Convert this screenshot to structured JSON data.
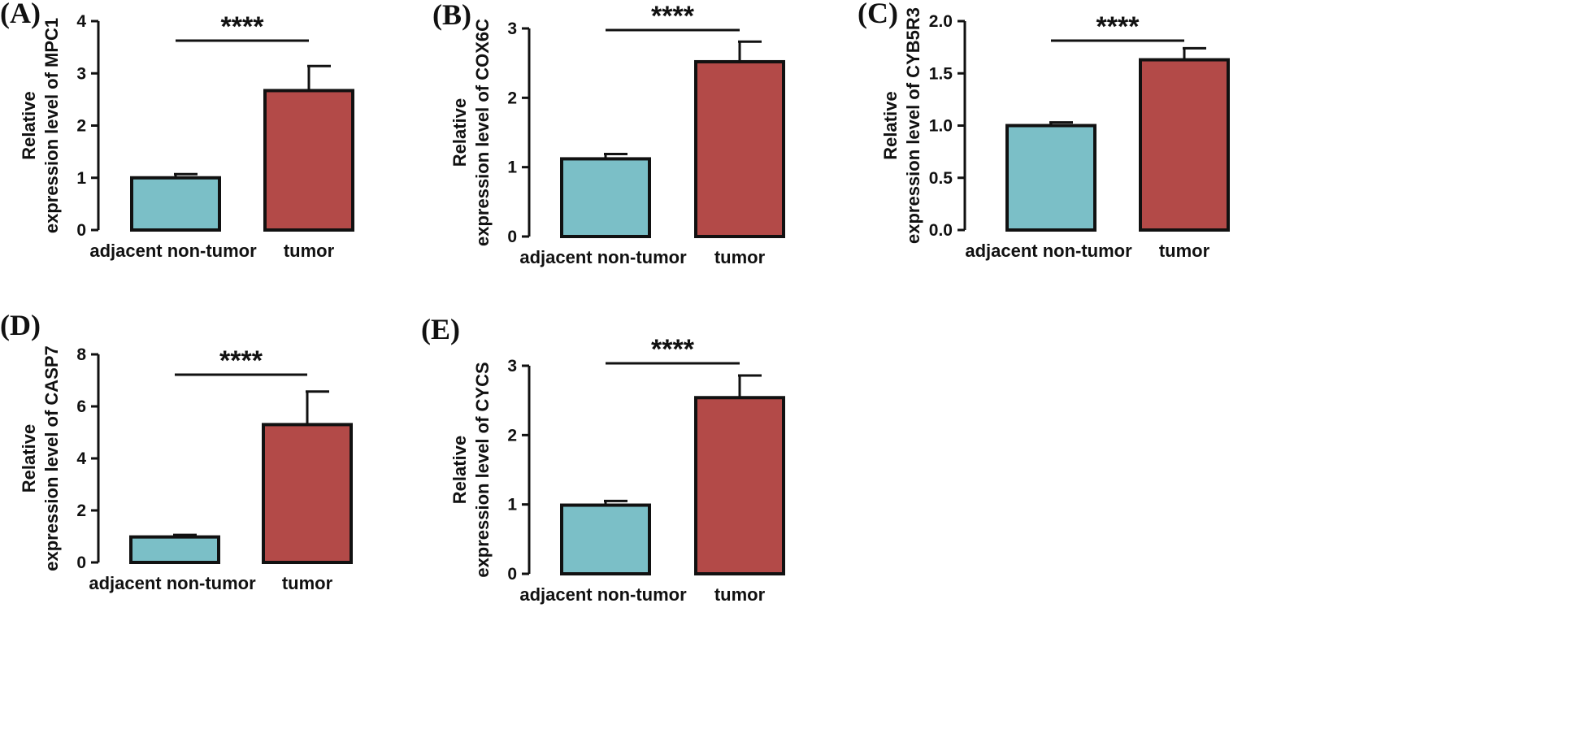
{
  "figure": {
    "background": "#ffffff",
    "colors": {
      "non_tumor": "#7bbfc7",
      "tumor": "#b34a48",
      "outline": "#111111"
    }
  },
  "chart_data": [
    {
      "type": "bar",
      "panel": "(A)",
      "categories": [
        "adjacent non-tumor",
        "tumor"
      ],
      "values": [
        1.0,
        2.67
      ],
      "errors": [
        0.07,
        0.47
      ],
      "ylabel_line1": "Relative",
      "ylabel_line2": "expression level of MPC1",
      "xlabel": "",
      "ylim": [
        0,
        4
      ],
      "yticks": [
        0,
        1,
        2,
        3,
        4
      ],
      "ytick_labels": [
        "0",
        "1",
        "2",
        "3",
        "4"
      ],
      "significance": "****",
      "grid": false
    },
    {
      "type": "bar",
      "panel": "(B)",
      "categories": [
        "adjacent non-tumor",
        "tumor"
      ],
      "values": [
        1.12,
        2.52
      ],
      "errors": [
        0.07,
        0.29
      ],
      "ylabel_line1": "Relative",
      "ylabel_line2": "expression level of COX6C",
      "xlabel": "",
      "ylim": [
        0,
        3
      ],
      "yticks": [
        0,
        1,
        2,
        3
      ],
      "ytick_labels": [
        "0",
        "1",
        "2",
        "3"
      ],
      "significance": "****",
      "grid": false
    },
    {
      "type": "bar",
      "panel": "(C)",
      "categories": [
        "adjacent non-tumor",
        "tumor"
      ],
      "values": [
        1.0,
        1.63
      ],
      "errors": [
        0.03,
        0.11
      ],
      "ylabel_line1": "Relative",
      "ylabel_line2": "expression level of CYB5R3",
      "xlabel": "",
      "ylim": [
        0,
        2.0
      ],
      "yticks": [
        0,
        0.5,
        1.0,
        1.5,
        2.0
      ],
      "ytick_labels": [
        "0.0",
        "0.5",
        "1.0",
        "1.5",
        "2.0"
      ],
      "significance": "****",
      "grid": false
    },
    {
      "type": "bar",
      "panel": "(D)",
      "categories": [
        "adjacent non-tumor",
        "tumor"
      ],
      "values": [
        0.98,
        5.3
      ],
      "errors": [
        0.08,
        1.27
      ],
      "ylabel_line1": "Relative",
      "ylabel_line2": "expression level of CASP7",
      "xlabel": "",
      "ylim": [
        0,
        8
      ],
      "yticks": [
        0,
        2,
        4,
        6,
        8
      ],
      "ytick_labels": [
        "0",
        "2",
        "4",
        "6",
        "8"
      ],
      "significance": "****",
      "grid": false
    },
    {
      "type": "bar",
      "panel": "(E)",
      "categories": [
        "adjacent non-tumor",
        "tumor"
      ],
      "values": [
        0.99,
        2.54
      ],
      "errors": [
        0.06,
        0.32
      ],
      "ylabel_line1": "Relative",
      "ylabel_line2": "expression level of CYCS",
      "xlabel": "",
      "ylim": [
        0,
        3
      ],
      "yticks": [
        0,
        1,
        2,
        3
      ],
      "ytick_labels": [
        "0",
        "1",
        "2",
        "3"
      ],
      "significance": "****",
      "grid": false
    }
  ]
}
